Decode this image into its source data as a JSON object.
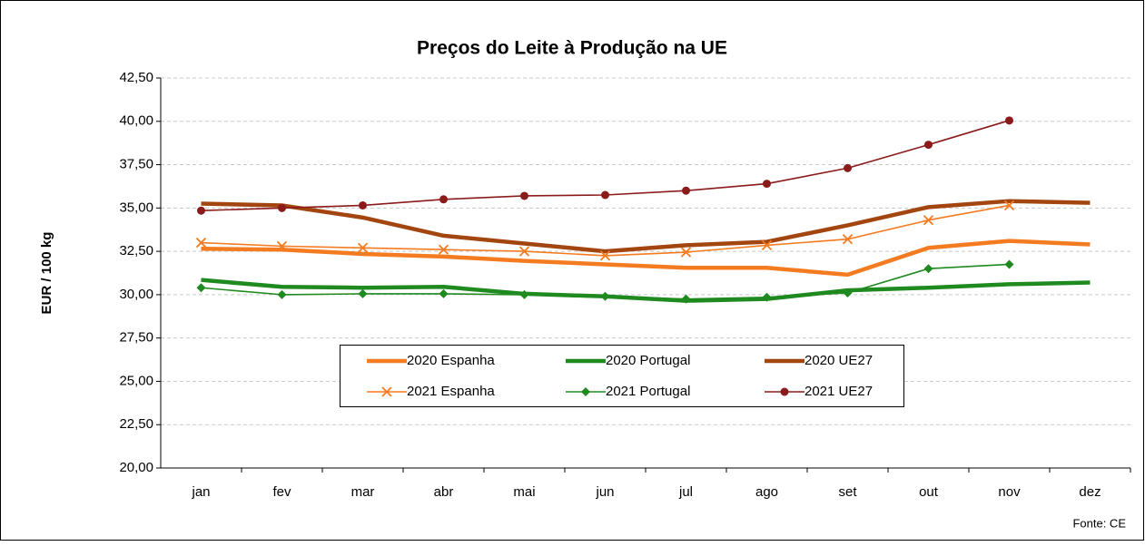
{
  "chart_data": {
    "type": "line",
    "title": "Preços do Leite à Produção na UE",
    "y_label": "EUR / 100 kg",
    "source": "Fonte: CE",
    "categories": [
      "jan",
      "fev",
      "mar",
      "abr",
      "mai",
      "jun",
      "jul",
      "ago",
      "set",
      "out",
      "nov",
      "dez"
    ],
    "ylim": [
      20,
      42.5
    ],
    "yticks": [
      {
        "value": 20,
        "label": "20,00"
      },
      {
        "value": 22.5,
        "label": "22,50"
      },
      {
        "value": 25,
        "label": "25,00"
      },
      {
        "value": 27.5,
        "label": "27,50"
      },
      {
        "value": 30,
        "label": "30,00"
      },
      {
        "value": 32.5,
        "label": "32,50"
      },
      {
        "value": 35,
        "label": "35,00"
      },
      {
        "value": 37.5,
        "label": "37,50"
      },
      {
        "value": 40,
        "label": "40,00"
      },
      {
        "value": 42.5,
        "label": "42,50"
      }
    ],
    "grid": true,
    "series": [
      {
        "name": "2020 Espanha",
        "color": "#f47b20",
        "marker": "none",
        "values": [
          32.65,
          32.6,
          32.35,
          32.2,
          31.95,
          31.75,
          31.55,
          31.55,
          31.15,
          32.7,
          33.1,
          32.9
        ]
      },
      {
        "name": "2020 Portugal",
        "color": "#1f8a1f",
        "marker": "none",
        "values": [
          30.85,
          30.45,
          30.4,
          30.45,
          30.05,
          29.9,
          29.65,
          29.75,
          30.25,
          30.4,
          30.6,
          30.7
        ]
      },
      {
        "name": "2020 UE27",
        "color": "#a3450f",
        "marker": "none",
        "values": [
          35.25,
          35.15,
          34.45,
          33.4,
          32.95,
          32.5,
          32.85,
          33.05,
          34.0,
          35.05,
          35.4,
          35.3
        ]
      },
      {
        "name": "2021 Espanha",
        "color": "#f47b20",
        "marker": "x",
        "values": [
          33.0,
          32.8,
          32.7,
          32.6,
          32.5,
          32.25,
          32.45,
          32.85,
          33.2,
          34.3,
          35.15,
          null
        ]
      },
      {
        "name": "2021 Portugal",
        "color": "#1f8a1f",
        "marker": "diamond",
        "values": [
          30.4,
          30.0,
          30.05,
          30.05,
          30.0,
          29.9,
          29.75,
          29.85,
          30.1,
          31.5,
          31.75,
          null
        ]
      },
      {
        "name": "2021 UE27",
        "color": "#8b1a1a",
        "marker": "circle",
        "values": [
          34.85,
          35.0,
          35.15,
          35.5,
          35.7,
          35.75,
          36.0,
          36.4,
          37.3,
          38.65,
          40.05,
          null
        ]
      }
    ]
  }
}
